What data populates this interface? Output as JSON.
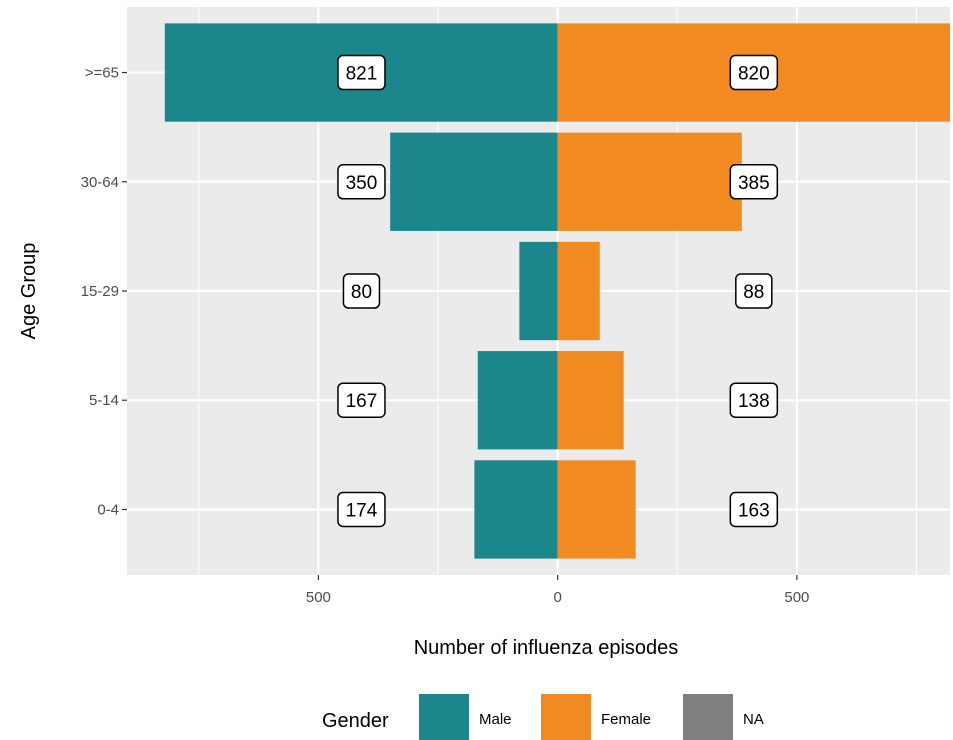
{
  "chart_data": {
    "type": "bar",
    "orientation": "horizontal",
    "layout": "diverging-population-pyramid",
    "categories": [
      "0-4",
      "5-14",
      "15-29",
      "30-64",
      ">=65"
    ],
    "series": [
      {
        "name": "Male",
        "values": [
          174,
          167,
          80,
          350,
          821
        ],
        "side": "left",
        "color": "#1b868c"
      },
      {
        "name": "Female",
        "values": [
          163,
          138,
          88,
          385,
          820
        ],
        "side": "right",
        "color": "#f28a22"
      }
    ],
    "xlabel": "Number of influenza episodes",
    "ylabel": "Age Group",
    "xlim": [
      -900,
      820
    ],
    "xticks": [
      {
        "value": -500,
        "label": "500"
      },
      {
        "value": 0,
        "label": "0"
      },
      {
        "value": 500,
        "label": "500"
      }
    ],
    "grid": true,
    "legend": {
      "title": "Gender",
      "placement": "bottom",
      "entries": [
        {
          "label": "Male",
          "color": "#1b868c"
        },
        {
          "label": "Female",
          "color": "#f28a22"
        },
        {
          "label": "NA",
          "color": "#7f7f7f"
        }
      ]
    },
    "data_label_positions": {
      "Male": -410,
      "Female": 410
    },
    "colors": {
      "panel_background": "#ebebeb",
      "grid": "#ffffff",
      "label_fill": "#ffffff",
      "label_border": "#000000"
    }
  }
}
